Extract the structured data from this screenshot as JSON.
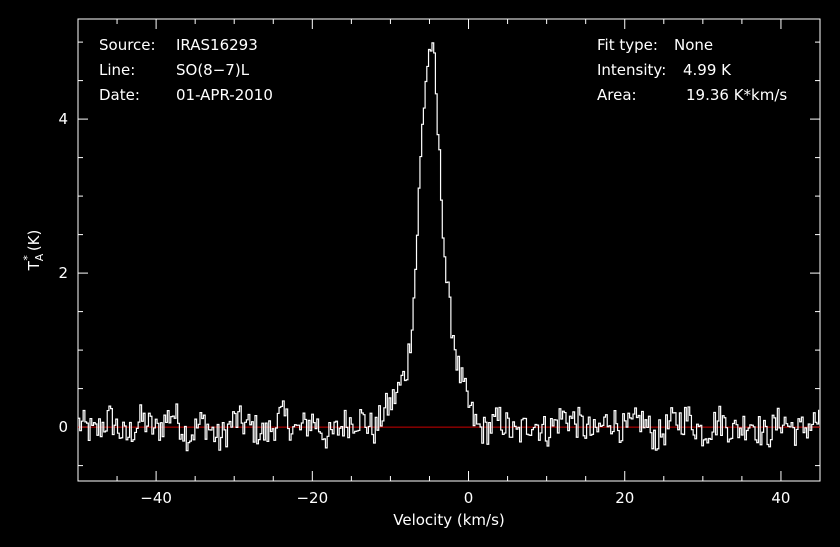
{
  "header_left": {
    "source_label": "Source:",
    "source_value": "IRAS16293",
    "line_label": "Line:",
    "line_value": "SO(8−7)L",
    "date_label": "Date:",
    "date_value": "01-APR-2010"
  },
  "header_right": {
    "fit_label": "Fit type:",
    "fit_value": "None",
    "intensity_label": "Intensity:",
    "intensity_value": "4.99 K",
    "area_label": "Area:",
    "area_value": "19.36 K*km/s"
  },
  "chart_data": {
    "type": "line",
    "xlabel": "Velocity (km/s)",
    "ylabel": "T",
    "ylabel_sup": "*",
    "ylabel_sub": "A",
    "ylabel_unit": "(K)",
    "xlim": [
      -50,
      45
    ],
    "ylim": [
      -0.7,
      5.3
    ],
    "xticks": [
      -40,
      -20,
      0,
      20,
      40
    ],
    "xtick_labels": [
      "−40",
      "−20",
      "0",
      "20",
      "40"
    ],
    "yticks": [
      0,
      2,
      4
    ],
    "ytick_labels": [
      "0",
      "2",
      "4"
    ],
    "grid": false,
    "baseline": {
      "y": 0,
      "color": "#cc0000"
    },
    "series": [
      {
        "color": "#ffffff",
        "peak_velocity": -4.7,
        "peak_value": 4.99,
        "x": [
          -50,
          -48,
          -46,
          -44,
          -42,
          -40,
          -38,
          -36,
          -34,
          -32,
          -30,
          -28,
          -26,
          -24,
          -22,
          -20,
          -18,
          -16,
          -14,
          -12,
          -11,
          -10,
          -9,
          -8,
          -7.5,
          -7,
          -6.5,
          -6,
          -5.5,
          -5,
          -4.7,
          -4.4,
          -4,
          -3.5,
          -3,
          -2.5,
          -2,
          -1.5,
          -1,
          0,
          1,
          2,
          4,
          6,
          8,
          10,
          12,
          14,
          16,
          18,
          20,
          22,
          24,
          26,
          28,
          30,
          32,
          34,
          36,
          38,
          40,
          42,
          44,
          45
        ],
        "y": [
          0.05,
          -0.08,
          0.12,
          -0.15,
          0.1,
          -0.05,
          0.2,
          -0.12,
          0.08,
          -0.18,
          0.1,
          0.0,
          -0.1,
          0.15,
          -0.06,
          0.1,
          -0.15,
          0.05,
          0.12,
          -0.05,
          0.2,
          0.3,
          0.5,
          0.75,
          1.2,
          1.8,
          2.9,
          3.9,
          4.6,
          4.95,
          4.99,
          4.6,
          3.8,
          2.9,
          2.0,
          1.5,
          1.2,
          0.8,
          0.6,
          0.25,
          0.0,
          -0.05,
          0.1,
          -0.12,
          0.08,
          -0.06,
          0.15,
          0.05,
          -0.1,
          0.12,
          -0.05,
          0.1,
          -0.15,
          0.06,
          0.12,
          -0.08,
          0.1,
          -0.05,
          0.08,
          -0.12,
          0.1,
          -0.06,
          0.05,
          0.1
        ]
      }
    ]
  }
}
